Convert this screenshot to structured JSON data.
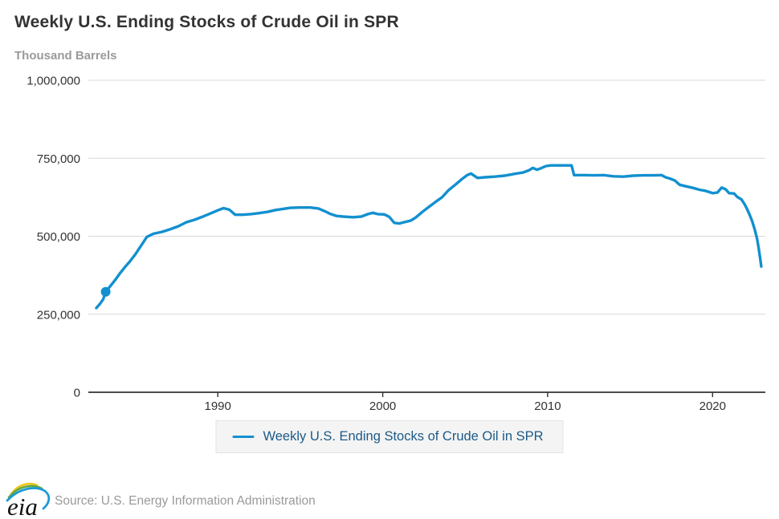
{
  "header": {
    "title": "Weekly U.S. Ending Stocks of Crude Oil in SPR",
    "units_label": "Thousand Barrels"
  },
  "legend": {
    "label": "Weekly U.S. Ending Stocks of Crude Oil in SPR"
  },
  "footer": {
    "source_text": "Source: U.S. Energy Information Administration",
    "logo_text": "eia"
  },
  "colors": {
    "line": "#1290cf",
    "grid": "#d8d8d8",
    "axis": "#333333",
    "axis_text": "#333333",
    "title": "#333333",
    "subtitle": "#9a9a9a",
    "legend_text": "#1d5a87",
    "legend_bg": "#f4f4f4",
    "legend_border": "#e4e4e4",
    "source_text": "#9a9a9a",
    "logo_yellow": "#f0c419",
    "logo_green": "#62a744",
    "logo_blue": "#1b9ad6"
  },
  "chart_data": {
    "type": "line",
    "title": "Weekly U.S. Ending Stocks of Crude Oil in SPR",
    "ylabel": "Thousand Barrels",
    "xlabel": "",
    "grid": "horizontal",
    "legend_position": "bottom-center",
    "x_range": [
      1982.15,
      2023.2
    ],
    "y_range": [
      0,
      1000000
    ],
    "x_ticks": [
      {
        "value": 1990,
        "label": "1990"
      },
      {
        "value": 2000,
        "label": "2000"
      },
      {
        "value": 2010,
        "label": "2010"
      },
      {
        "value": 2020,
        "label": "2020"
      }
    ],
    "y_ticks": [
      {
        "value": 0,
        "label": "0"
      },
      {
        "value": 250000,
        "label": "250,000"
      },
      {
        "value": 500000,
        "label": "500,000"
      },
      {
        "value": 750000,
        "label": "750,000"
      },
      {
        "value": 1000000,
        "label": "1,000,000"
      }
    ],
    "marker": {
      "x": 1983.2,
      "y": 322000
    },
    "series": [
      {
        "name": "Weekly U.S. Ending Stocks of Crude Oil in SPR",
        "points": [
          [
            1982.63,
            270000
          ],
          [
            1982.85,
            283000
          ],
          [
            1983.05,
            298000
          ],
          [
            1983.2,
            322000
          ],
          [
            1983.45,
            338000
          ],
          [
            1983.75,
            358000
          ],
          [
            1984.05,
            380000
          ],
          [
            1984.35,
            400000
          ],
          [
            1984.65,
            418000
          ],
          [
            1985.0,
            442000
          ],
          [
            1985.35,
            470000
          ],
          [
            1985.7,
            498000
          ],
          [
            1986.1,
            508000
          ],
          [
            1986.6,
            514000
          ],
          [
            1987.1,
            522000
          ],
          [
            1987.6,
            532000
          ],
          [
            1988.1,
            545000
          ],
          [
            1988.6,
            553000
          ],
          [
            1989.1,
            563000
          ],
          [
            1989.6,
            574000
          ],
          [
            1990.0,
            583000
          ],
          [
            1990.35,
            590000
          ],
          [
            1990.7,
            585000
          ],
          [
            1991.05,
            569000
          ],
          [
            1991.5,
            569000
          ],
          [
            1992.0,
            571000
          ],
          [
            1992.5,
            574000
          ],
          [
            1993.0,
            578000
          ],
          [
            1993.5,
            584000
          ],
          [
            1994.0,
            588000
          ],
          [
            1994.4,
            591000
          ],
          [
            1995.0,
            592000
          ],
          [
            1995.6,
            592000
          ],
          [
            1996.1,
            589000
          ],
          [
            1996.5,
            580000
          ],
          [
            1996.8,
            572000
          ],
          [
            1997.2,
            565000
          ],
          [
            1997.6,
            563000
          ],
          [
            1998.2,
            561000
          ],
          [
            1998.7,
            563000
          ],
          [
            1999.1,
            571000
          ],
          [
            1999.4,
            575000
          ],
          [
            1999.7,
            571000
          ],
          [
            2000.1,
            570000
          ],
          [
            2000.4,
            562000
          ],
          [
            2000.7,
            543000
          ],
          [
            2001.0,
            541000
          ],
          [
            2001.3,
            545000
          ],
          [
            2001.7,
            550000
          ],
          [
            2002.0,
            560000
          ],
          [
            2002.4,
            578000
          ],
          [
            2002.8,
            594000
          ],
          [
            2003.2,
            610000
          ],
          [
            2003.6,
            625000
          ],
          [
            2004.0,
            648000
          ],
          [
            2004.4,
            665000
          ],
          [
            2004.8,
            683000
          ],
          [
            2005.1,
            695000
          ],
          [
            2005.35,
            701000
          ],
          [
            2005.75,
            687000
          ],
          [
            2006.2,
            689000
          ],
          [
            2006.8,
            691000
          ],
          [
            2007.4,
            694000
          ],
          [
            2008.0,
            700000
          ],
          [
            2008.5,
            704000
          ],
          [
            2008.9,
            712000
          ],
          [
            2009.1,
            719000
          ],
          [
            2009.35,
            713000
          ],
          [
            2009.6,
            718000
          ],
          [
            2009.9,
            725000
          ],
          [
            2010.2,
            727000
          ],
          [
            2010.8,
            727000
          ],
          [
            2011.45,
            727000
          ],
          [
            2011.6,
            696000
          ],
          [
            2012.2,
            696000
          ],
          [
            2012.8,
            695000
          ],
          [
            2013.4,
            696000
          ],
          [
            2014.0,
            692000
          ],
          [
            2014.6,
            691000
          ],
          [
            2015.2,
            694000
          ],
          [
            2015.8,
            695000
          ],
          [
            2016.4,
            695000
          ],
          [
            2016.9,
            696000
          ],
          [
            2017.15,
            689000
          ],
          [
            2017.4,
            685000
          ],
          [
            2017.7,
            679000
          ],
          [
            2018.0,
            665000
          ],
          [
            2018.4,
            660000
          ],
          [
            2018.8,
            655000
          ],
          [
            2019.2,
            649000
          ],
          [
            2019.6,
            645000
          ],
          [
            2020.0,
            638000
          ],
          [
            2020.3,
            640000
          ],
          [
            2020.55,
            656000
          ],
          [
            2020.8,
            650000
          ],
          [
            2021.0,
            638000
          ],
          [
            2021.3,
            637000
          ],
          [
            2021.5,
            626000
          ],
          [
            2021.75,
            618000
          ],
          [
            2021.95,
            602000
          ],
          [
            2022.1,
            586000
          ],
          [
            2022.25,
            568000
          ],
          [
            2022.4,
            548000
          ],
          [
            2022.55,
            522000
          ],
          [
            2022.7,
            492000
          ],
          [
            2022.8,
            460000
          ],
          [
            2022.9,
            425000
          ],
          [
            2022.95,
            403000
          ]
        ]
      }
    ]
  }
}
